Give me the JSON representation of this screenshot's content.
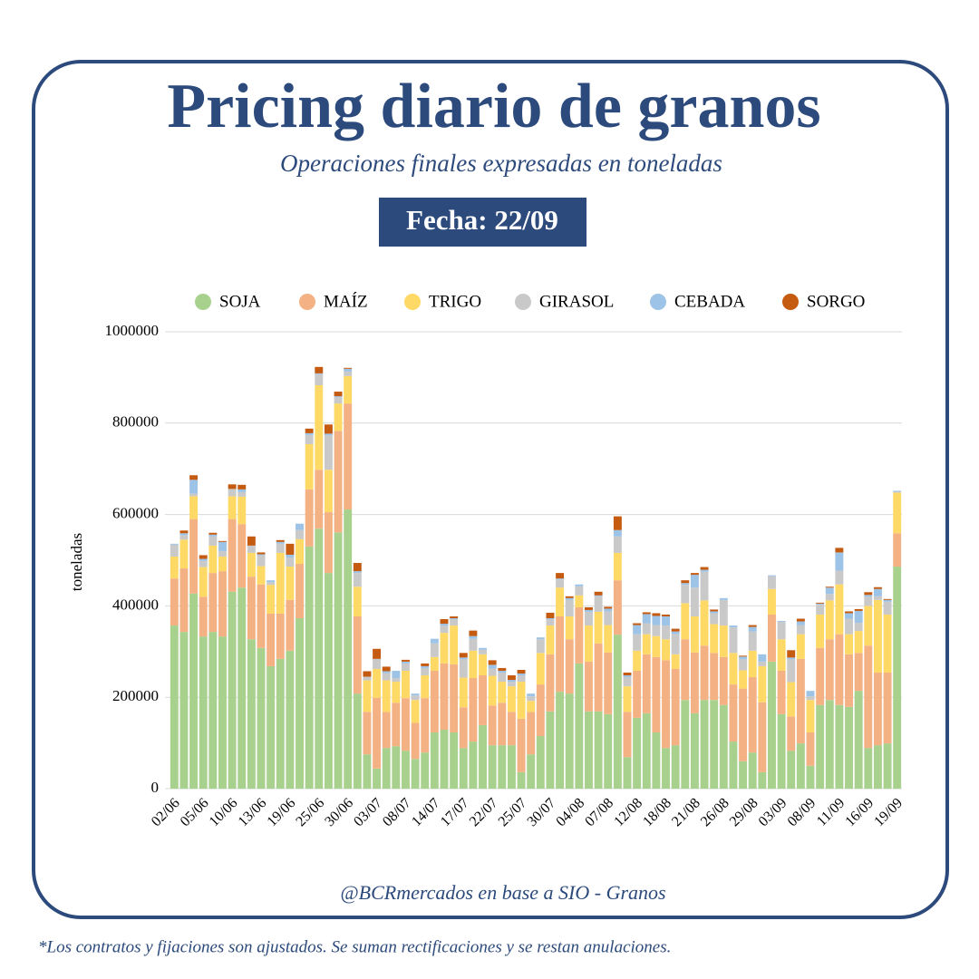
{
  "chart_data": {
    "type": "stacked_bar",
    "title": "Pricing diario de granos",
    "subtitle": "Operaciones finales expresadas en toneladas",
    "date_badge": "Fecha: 22/09",
    "y_label": "toneladas",
    "source": "@BCRmercados en base a SIO - Granos",
    "footnote": "*Los contratos y fijaciones son ajustados. Se suman rectificaciones y  se restan anulaciones.",
    "categories": [
      "02/06",
      null,
      null,
      "05/06",
      null,
      null,
      "10/06",
      null,
      null,
      "13/06",
      null,
      null,
      "19/06",
      null,
      null,
      "25/06",
      null,
      null,
      "30/06",
      null,
      null,
      "03/07",
      null,
      null,
      "08/07",
      null,
      null,
      "14/07",
      null,
      null,
      "17/07",
      null,
      null,
      "22/07",
      null,
      null,
      "25/07",
      null,
      null,
      "30/07",
      null,
      null,
      "04/08",
      null,
      null,
      "07/08",
      null,
      null,
      "12/08",
      null,
      null,
      "18/08",
      null,
      null,
      "21/08",
      null,
      null,
      "26/08",
      null,
      null,
      "29/08",
      null,
      null,
      "03/09",
      null,
      null,
      "08/09",
      null,
      null,
      "11/09",
      null,
      null,
      "16/09",
      null,
      null,
      "19/09"
    ],
    "ylim": [
      0,
      1000000
    ],
    "yticks": [
      0,
      200000,
      400000,
      600000,
      800000,
      1000000
    ],
    "grid": true,
    "legend": "top",
    "series": [
      {
        "name": "SOJA",
        "color": "#a9d18e",
        "values": [
          357000,
          343000,
          427000,
          333000,
          343000,
          333000,
          431000,
          440000,
          327000,
          308000,
          268000,
          284000,
          302000,
          373000,
          530000,
          569000,
          472000,
          561000,
          611000,
          208000,
          75000,
          44000,
          89000,
          93000,
          83000,
          65000,
          79000,
          123000,
          129000,
          123000,
          89000,
          103000,
          139000,
          95000,
          95000,
          95000,
          36000,
          75000,
          115000,
          169000,
          212000,
          208000,
          274000,
          169000,
          169000,
          163000,
          337000,
          69000,
          155000,
          165000,
          123000,
          89000,
          95000,
          194000,
          165000,
          194000,
          194000,
          183000,
          103000,
          60000,
          79000,
          36000,
          278000,
          163000,
          83000,
          99000,
          50000,
          183000,
          194000,
          183000,
          179000,
          214000,
          89000,
          95000,
          99000,
          486000
        ]
      },
      {
        "name": "MAÍZ",
        "color": "#f4b183",
        "values": [
          103000,
          139000,
          163000,
          87000,
          129000,
          143000,
          159000,
          139000,
          137000,
          139000,
          115000,
          99000,
          111000,
          119000,
          125000,
          129000,
          133000,
          222000,
          232000,
          169000,
          93000,
          155000,
          79000,
          95000,
          115000,
          79000,
          119000,
          135000,
          145000,
          149000,
          89000,
          139000,
          109000,
          87000,
          93000,
          73000,
          117000,
          93000,
          113000,
          125000,
          165000,
          119000,
          123000,
          109000,
          149000,
          135000,
          119000,
          99000,
          103000,
          129000,
          165000,
          192000,
          167000,
          133000,
          133000,
          119000,
          103000,
          105000,
          125000,
          159000,
          165000,
          153000,
          103000,
          95000,
          75000,
          185000,
          73000,
          125000,
          133000,
          155000,
          115000,
          83000,
          224000,
          159000,
          155000,
          73000
        ]
      },
      {
        "name": "TRIGO",
        "color": "#ffd966",
        "values": [
          48000,
          63000,
          50000,
          65000,
          60000,
          32000,
          50000,
          60000,
          52000,
          40000,
          63000,
          133000,
          73000,
          54000,
          99000,
          185000,
          93000,
          60000,
          60000,
          65000,
          69000,
          63000,
          69000,
          46000,
          60000,
          50000,
          50000,
          30000,
          67000,
          85000,
          65000,
          60000,
          46000,
          65000,
          46000,
          56000,
          81000,
          24000,
          69000,
          63000,
          63000,
          50000,
          26000,
          79000,
          69000,
          60000,
          60000,
          56000,
          44000,
          44000,
          46000,
          46000,
          32000,
          79000,
          79000,
          99000,
          63000,
          69000,
          69000,
          40000,
          58000,
          79000,
          56000,
          69000,
          75000,
          54000,
          71000,
          73000,
          85000,
          109000,
          44000,
          48000,
          87000,
          159000,
          127000,
          89000
        ]
      },
      {
        "name": "GIRASOL",
        "color": "#c9c9c9",
        "values": [
          26000,
          10000,
          6000,
          14000,
          20000,
          12000,
          16000,
          10000,
          16000,
          24000,
          6000,
          20000,
          20000,
          20000,
          20000,
          24000,
          75000,
          14000,
          10000,
          30000,
          8000,
          22000,
          16000,
          8000,
          16000,
          10000,
          16000,
          30000,
          16000,
          14000,
          40000,
          26000,
          10000,
          16000,
          20000,
          10000,
          14000,
          10000,
          30000,
          14000,
          18000,
          36000,
          20000,
          30000,
          34000,
          30000,
          36000,
          20000,
          36000,
          24000,
          24000,
          30000,
          44000,
          40000,
          63000,
          63000,
          24000,
          56000,
          56000,
          24000,
          42000,
          10000,
          28000,
          38000,
          50000,
          20000,
          8000,
          22000,
          14000,
          30000,
          34000,
          18000,
          20000,
          8000,
          28000,
          2000
        ]
      },
      {
        "name": "CEBADA",
        "color": "#9dc3e6",
        "values": [
          2000,
          4000,
          30000,
          4000,
          4000,
          20000,
          0,
          6000,
          0,
          2000,
          4000,
          4000,
          6000,
          14000,
          4000,
          2000,
          4000,
          2000,
          6000,
          4000,
          0,
          0,
          4000,
          16000,
          4000,
          4000,
          4000,
          10000,
          4000,
          2000,
          4000,
          6000,
          4000,
          8000,
          4000,
          4000,
          4000,
          6000,
          4000,
          2000,
          2000,
          4000,
          4000,
          4000,
          2000,
          6000,
          14000,
          4000,
          20000,
          20000,
          20000,
          20000,
          6000,
          4000,
          28000,
          4000,
          4000,
          4000,
          4000,
          6000,
          10000,
          16000,
          2000,
          2000,
          4000,
          8000,
          12000,
          2000,
          14000,
          40000,
          12000,
          26000,
          4000,
          16000,
          4000,
          2000
        ]
      },
      {
        "name": "SORGO",
        "color": "#c55a11",
        "values": [
          0,
          6000,
          10000,
          8000,
          4000,
          2000,
          10000,
          10000,
          20000,
          4000,
          0,
          4000,
          24000,
          0,
          10000,
          14000,
          20000,
          10000,
          2000,
          18000,
          12000,
          22000,
          10000,
          0,
          4000,
          0,
          6000,
          0,
          10000,
          4000,
          10000,
          12000,
          0,
          10000,
          6000,
          10000,
          8000,
          0,
          0,
          12000,
          12000,
          4000,
          0,
          6000,
          8000,
          4000,
          30000,
          6000,
          4000,
          4000,
          6000,
          4000,
          6000,
          6000,
          4000,
          6000,
          4000,
          0,
          0,
          2000,
          4000,
          0,
          0,
          0,
          16000,
          6000,
          0,
          2000,
          2000,
          10000,
          4000,
          4000,
          6000,
          4000,
          2000,
          0
        ]
      }
    ]
  }
}
